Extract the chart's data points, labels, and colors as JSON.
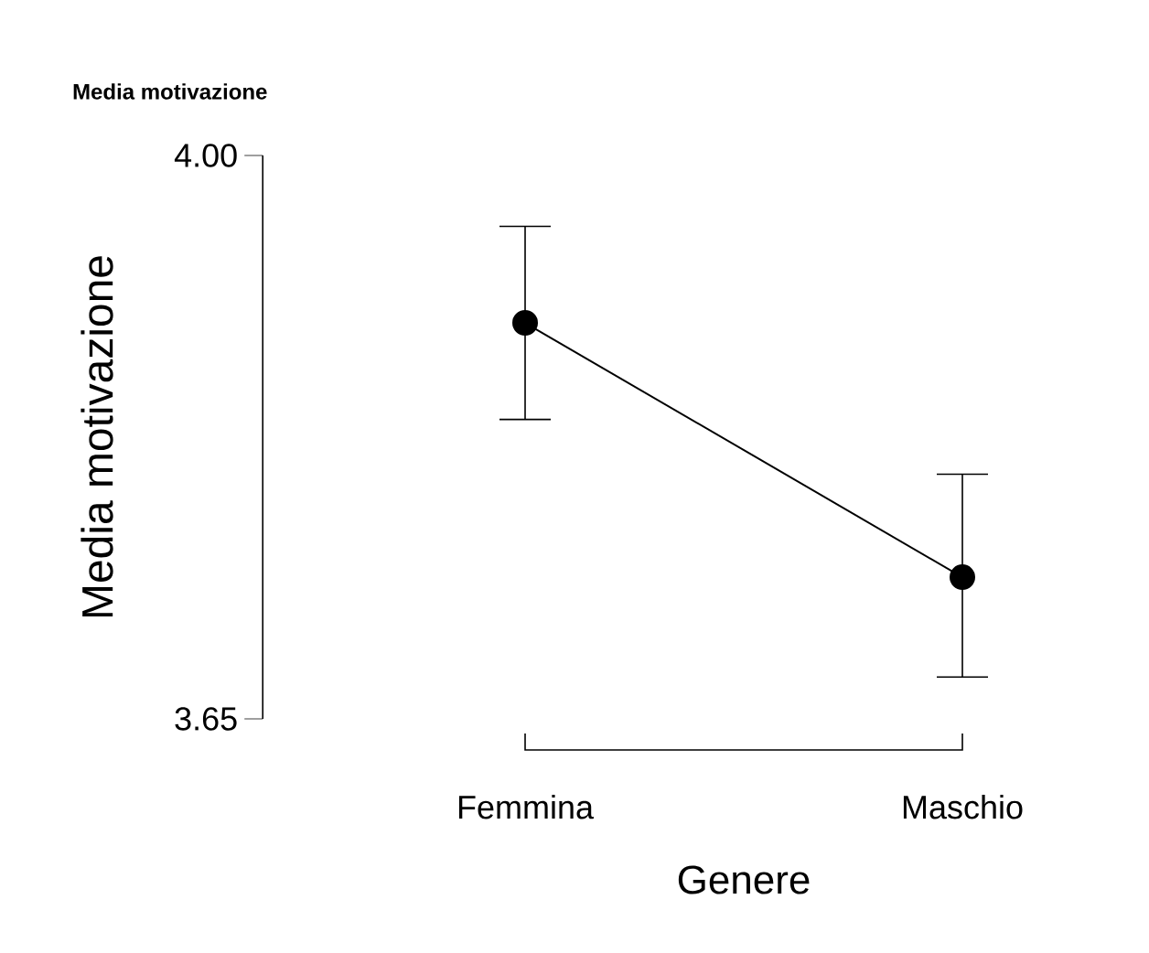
{
  "chart_data": {
    "type": "line",
    "title": "Media motivazione",
    "xlabel": "Genere",
    "ylabel": "Media motivazione",
    "categories": [
      "Femmina",
      "Maschio"
    ],
    "values": [
      3.896,
      3.738
    ],
    "errors": [
      [
        3.836,
        3.956
      ],
      [
        3.676,
        3.802
      ]
    ],
    "color": "#000000",
    "marker": "circle",
    "line_style": "solid",
    "ylim": [
      3.65,
      4.0
    ],
    "yticks": [
      3.65,
      {
        "value": 4.0,
        "label": "4.00"
      }
    ]
  }
}
